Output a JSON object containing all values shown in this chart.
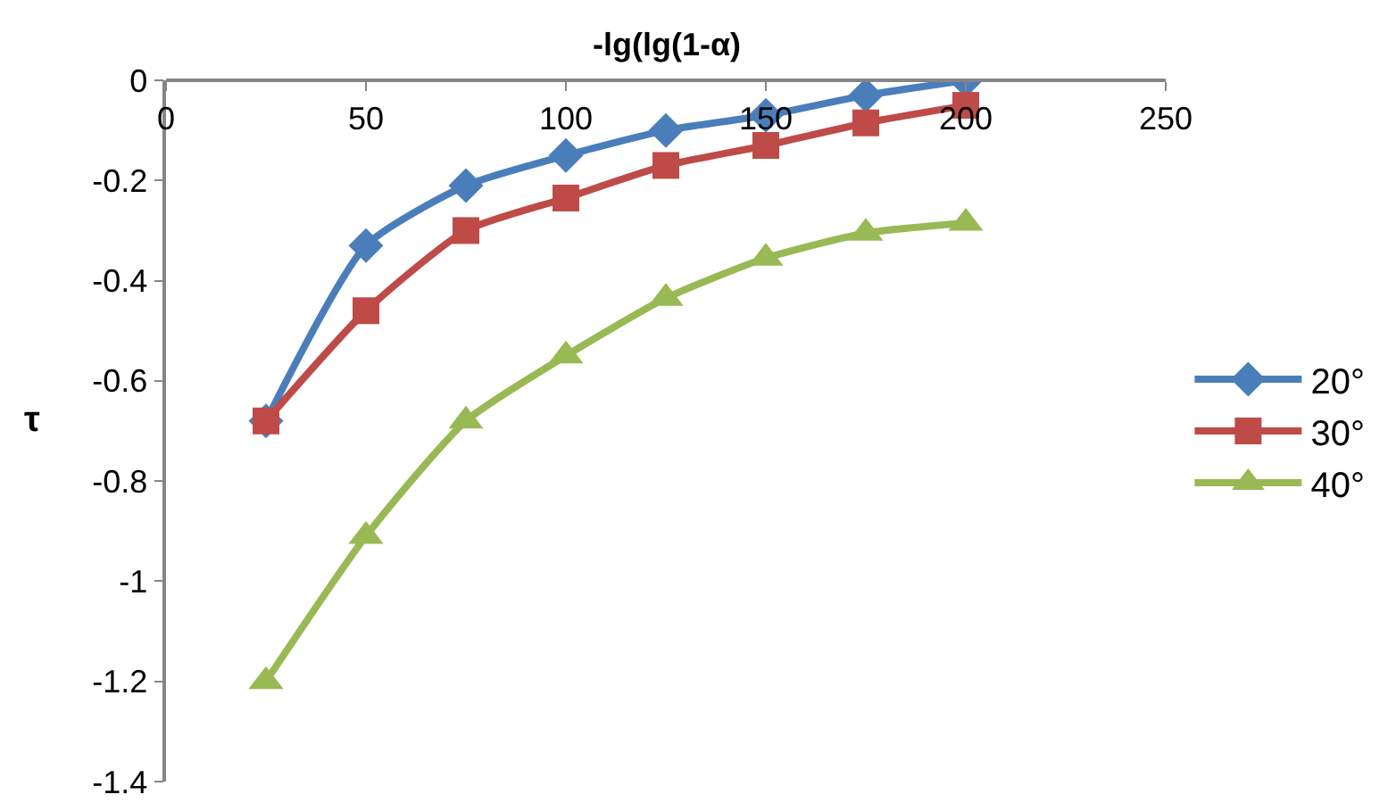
{
  "chart_data": {
    "type": "line",
    "xlabel": "-lg(lg(1-α)",
    "ylabel": "τ",
    "x": [
      25,
      50,
      75,
      100,
      125,
      150,
      175,
      200
    ],
    "series": [
      {
        "name": "20°",
        "color": "#4a7ebb",
        "marker": "diamond",
        "values": [
          -0.68,
          -0.33,
          -0.21,
          -0.15,
          -0.1,
          -0.07,
          -0.03,
          0
        ]
      },
      {
        "name": "30°",
        "color": "#be4b48",
        "marker": "square",
        "values": [
          -0.68,
          -0.46,
          -0.3,
          -0.235,
          -0.17,
          -0.13,
          -0.085,
          -0.05
        ]
      },
      {
        "name": "40°",
        "color": "#98b954",
        "marker": "triangle",
        "values": [
          -1.2,
          -0.91,
          -0.68,
          -0.55,
          -0.435,
          -0.355,
          -0.305,
          -0.285
        ]
      }
    ],
    "xlim": [
      0,
      250
    ],
    "xticks": [
      0,
      50,
      100,
      150,
      200,
      250
    ],
    "ylim": [
      -1.4,
      0
    ],
    "yticks": [
      0,
      -0.2,
      -0.4,
      -0.6,
      -0.8,
      -1,
      -1.2,
      -1.4
    ],
    "grid": false,
    "legend": "right",
    "line_style": "solid"
  }
}
